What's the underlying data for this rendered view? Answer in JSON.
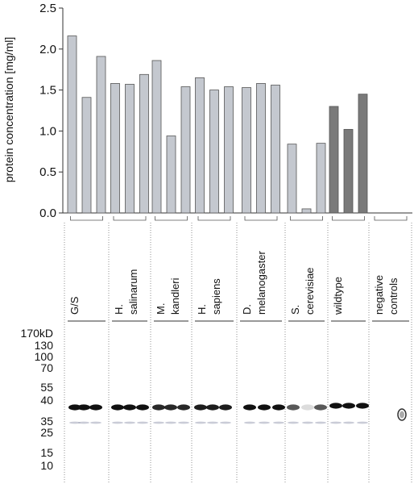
{
  "chart_data": {
    "type": "bar",
    "title": "",
    "xlabel": "",
    "ylabel": "protein concentration [mg/ml]",
    "ylim": [
      0,
      2.5
    ],
    "yticks": [
      "0.0",
      "0.5",
      "1.0",
      "1.5",
      "2.0",
      "2.5"
    ],
    "groups": [
      {
        "label_lines": [
          "G/S"
        ],
        "values": [
          2.16,
          1.41,
          1.91
        ]
      },
      {
        "label_lines": [
          "H.",
          "salinarum"
        ],
        "values": [
          1.58,
          1.57,
          1.69
        ]
      },
      {
        "label_lines": [
          "M.",
          "kandleri"
        ],
        "values": [
          1.86,
          0.94,
          1.54
        ]
      },
      {
        "label_lines": [
          "H.",
          "sapiens"
        ],
        "values": [
          1.65,
          1.5,
          1.54
        ]
      },
      {
        "label_lines": [
          "D.",
          "melanogaster"
        ],
        "values": [
          1.53,
          1.58,
          1.56
        ]
      },
      {
        "label_lines": [
          "S.",
          "cerevisiae"
        ],
        "values": [
          0.84,
          0.05,
          0.85
        ]
      },
      {
        "label_lines": [
          "wildtype"
        ],
        "values": [
          1.3,
          1.02,
          1.45
        ]
      },
      {
        "label_lines": [
          "negative",
          "controls"
        ],
        "values": [
          0,
          0,
          0
        ]
      }
    ],
    "colors": {
      "light_bar": "#c4c8cf",
      "dark_bar": "#7a7a7a",
      "bar_stroke": "#555555"
    }
  },
  "gel": {
    "marker_labels": [
      "170kD",
      "130",
      "100",
      "70",
      "55",
      "40",
      "35",
      "25",
      "15",
      "10"
    ]
  }
}
